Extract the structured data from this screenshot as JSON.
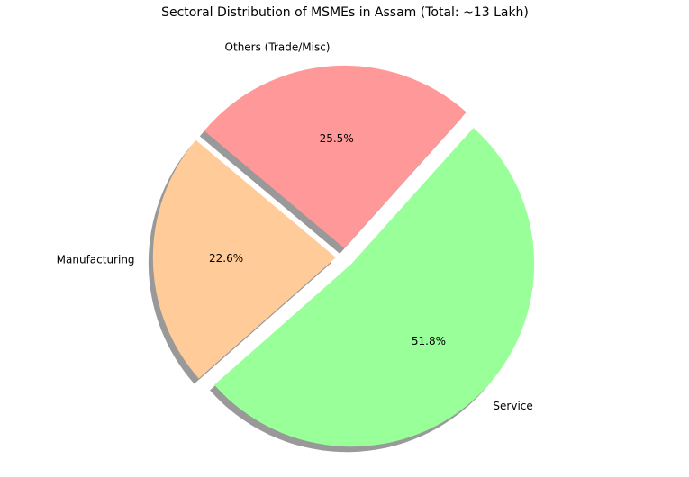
{
  "chart_data": {
    "type": "pie",
    "title": "Sectoral Distribution of MSMEs in Assam (Total: ~13 Lakh)",
    "categories": [
      "Manufacturing",
      "Service",
      "Others (Trade/Misc)"
    ],
    "values": [
      22.6,
      51.8,
      25.5
    ],
    "value_labels": [
      "22.6%",
      "51.8%",
      "25.5%"
    ],
    "colors": [
      "#ffcc99",
      "#99ff99",
      "#ff9999"
    ]
  }
}
